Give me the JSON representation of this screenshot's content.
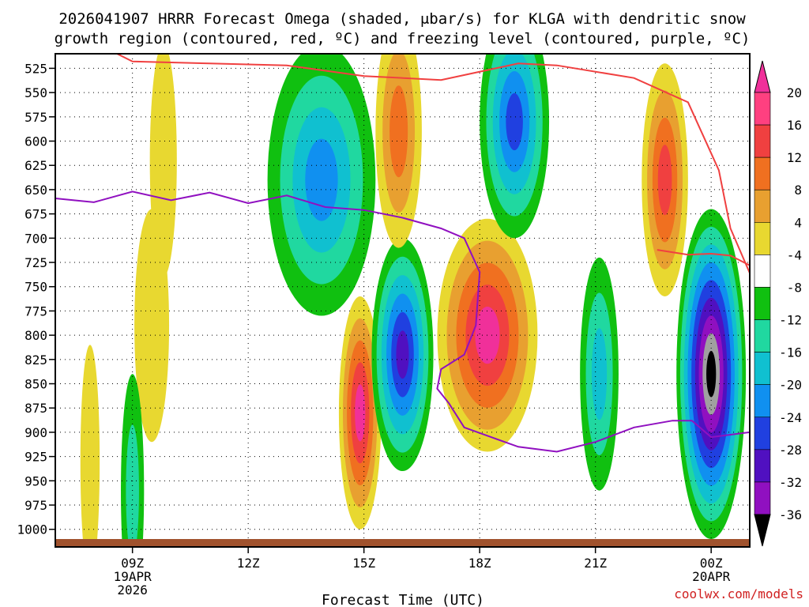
{
  "chart_data": {
    "type": "contour",
    "title_line1": "2026041907 HRRR Forecast Omega (shaded, μbar/s) for KLGA with dendritic snow",
    "title_line2": "growth region (contoured, red, ºC) and freezing level (contoured, purple, ºC)",
    "xlabel": "Forecast Time (UTC)",
    "credit": "coolwx.com/models",
    "y_ticks": [
      "525",
      "550",
      "575",
      "600",
      "625",
      "650",
      "675",
      "700",
      "725",
      "750",
      "775",
      "800",
      "825",
      "850",
      "875",
      "900",
      "925",
      "950",
      "975",
      "1000"
    ],
    "y_range_mb": [
      510,
      1010
    ],
    "x_range_hours": [
      7,
      25
    ],
    "x_ticks": [
      {
        "hour": 9,
        "label": "09Z",
        "sub1": "19APR",
        "sub2": "2026"
      },
      {
        "hour": 12,
        "label": "12Z",
        "sub1": "",
        "sub2": ""
      },
      {
        "hour": 15,
        "label": "15Z",
        "sub1": "",
        "sub2": ""
      },
      {
        "hour": 18,
        "label": "18Z",
        "sub1": "",
        "sub2": ""
      },
      {
        "hour": 21,
        "label": "21Z",
        "sub1": "",
        "sub2": ""
      },
      {
        "hour": 24,
        "label": "00Z",
        "sub1": "20APR",
        "sub2": ""
      }
    ],
    "colorbar": {
      "labels": [
        "20",
        "16",
        "12",
        "8",
        "4",
        "-4",
        "-8",
        "-12",
        "-16",
        "-20",
        "-24",
        "-28",
        "-32",
        "-36"
      ],
      "colors": [
        "#ff4080",
        "#f04040",
        "#f07020",
        "#e8a030",
        "#e8d830",
        "#ffffff",
        "#10c010",
        "#20d8a0",
        "#10c0d0",
        "#1090f0",
        "#2040e0",
        "#5010c0",
        "#9010c0",
        "#a0a0a0"
      ],
      "top_color": "#f0309a",
      "bottom_color": "#000000"
    },
    "omega_regions": [
      {
        "name": "col-09z-positive",
        "hour": 9.8,
        "center_mb": 620,
        "width_h": 0.35,
        "levels": [
          4
        ]
      },
      {
        "name": "col-10z-positive",
        "hour": 9.5,
        "center_mb": 790,
        "width_h": 0.45,
        "levels": [
          4
        ]
      },
      {
        "name": "col-0830z-positive",
        "hour": 7.9,
        "center_mb": 930,
        "width_h": 0.25,
        "levels": [
          4
        ]
      },
      {
        "name": "col-09z-negative",
        "hour": 9.0,
        "center_mb": 960,
        "width_h": 0.3,
        "levels": [
          -4,
          -8
        ]
      },
      {
        "name": "col-13z-negative",
        "hour": 13.9,
        "center_mb": 640,
        "width_h": 1.4,
        "levels": [
          -4,
          -8,
          -12,
          -16
        ]
      },
      {
        "name": "col-15z-positive",
        "hour": 14.9,
        "center_mb": 880,
        "width_h": 0.55,
        "levels": [
          4,
          8,
          12,
          16,
          20
        ]
      },
      {
        "name": "col-16z-negative",
        "hour": 16.0,
        "center_mb": 820,
        "width_h": 0.8,
        "levels": [
          -4,
          -8,
          -12,
          -16,
          -20,
          -24
        ]
      },
      {
        "name": "col-15z-top-positive",
        "hour": 15.9,
        "center_mb": 590,
        "width_h": 0.6,
        "levels": [
          4,
          8,
          12
        ]
      },
      {
        "name": "col-18z-positive",
        "hour": 18.2,
        "center_mb": 800,
        "width_h": 1.3,
        "levels": [
          4,
          8,
          12,
          16,
          20
        ]
      },
      {
        "name": "col-19z-negative",
        "hour": 18.9,
        "center_mb": 580,
        "width_h": 0.9,
        "levels": [
          -4,
          -8,
          -12,
          -16,
          -20
        ]
      },
      {
        "name": "col-21z-negative",
        "hour": 21.1,
        "center_mb": 840,
        "width_h": 0.5,
        "levels": [
          -4,
          -8,
          -12
        ]
      },
      {
        "name": "col-23z-positive",
        "hour": 22.8,
        "center_mb": 640,
        "width_h": 0.6,
        "levels": [
          4,
          8,
          12,
          16
        ]
      },
      {
        "name": "col-00z-negative",
        "hour": 24.0,
        "center_mb": 840,
        "width_h": 0.9,
        "levels": [
          -4,
          -8,
          -12,
          -16,
          -20,
          -24,
          -28,
          -32,
          -36
        ]
      }
    ],
    "dgz_top_line": [
      [
        8.6,
        510
      ],
      [
        9.0,
        518
      ],
      [
        11,
        520
      ],
      [
        13,
        522
      ],
      [
        15,
        533
      ],
      [
        17,
        537
      ],
      [
        19,
        520
      ],
      [
        20,
        522
      ],
      [
        22,
        535
      ],
      [
        23.4,
        560
      ],
      [
        24.2,
        630
      ],
      [
        24.5,
        690
      ],
      [
        25,
        736
      ]
    ],
    "dgz_bottom_line": [
      [
        22.6,
        712
      ],
      [
        23.4,
        717
      ],
      [
        24.0,
        716
      ],
      [
        24.5,
        718
      ],
      [
        25,
        728
      ]
    ],
    "freezing_level": [
      [
        7,
        659
      ],
      [
        8,
        663
      ],
      [
        9,
        652
      ],
      [
        10,
        661
      ],
      [
        11,
        653
      ],
      [
        12,
        664
      ],
      [
        13,
        656
      ],
      [
        14,
        668
      ],
      [
        15,
        671
      ],
      [
        16,
        679
      ],
      [
        17,
        690
      ],
      [
        17.6,
        700
      ],
      [
        18.0,
        735
      ],
      [
        17.9,
        790
      ],
      [
        17.6,
        820
      ],
      [
        17.0,
        835
      ],
      [
        16.9,
        855
      ],
      [
        17.2,
        870
      ],
      [
        17.6,
        895
      ],
      [
        19.0,
        915
      ],
      [
        20.0,
        920
      ],
      [
        21.0,
        910
      ],
      [
        22.0,
        895
      ],
      [
        23.0,
        888
      ],
      [
        23.5,
        888
      ],
      [
        24.0,
        905
      ],
      [
        25,
        900
      ]
    ]
  }
}
